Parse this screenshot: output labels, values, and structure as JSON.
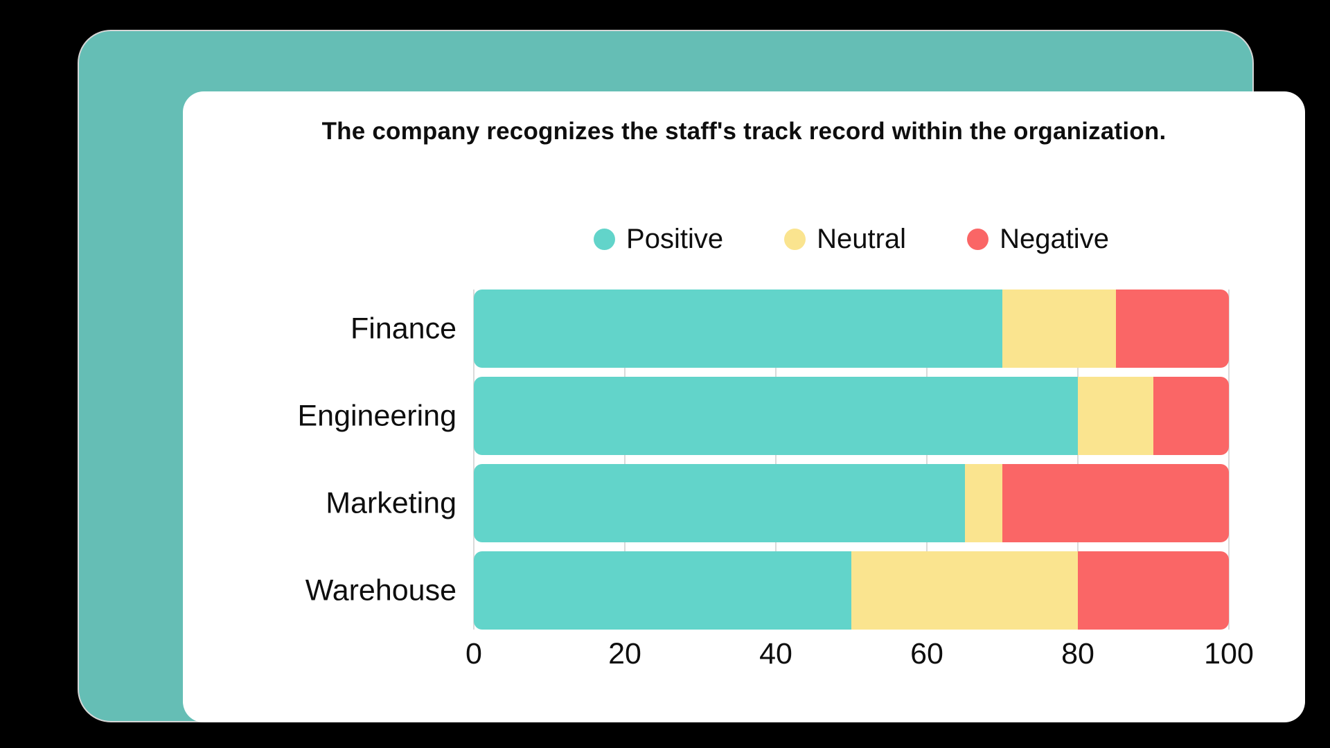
{
  "frame_color": "#65BEB5",
  "card_color": "#ffffff",
  "grid_color": "#dadada",
  "text_color": "#0e0e0e",
  "chart_data": {
    "type": "bar",
    "stacked": true,
    "orientation": "horizontal",
    "title": "The company recognizes the staff's track record within the organization.",
    "categories": [
      "Finance",
      "Engineering",
      "Marketing",
      "Warehouse"
    ],
    "series": [
      {
        "name": "Positive",
        "color": "#62D4CA",
        "values": [
          70,
          80,
          65,
          50
        ]
      },
      {
        "name": "Neutral",
        "color": "#FAE48F",
        "values": [
          15,
          10,
          5,
          30
        ]
      },
      {
        "name": "Negative",
        "color": "#FA6666",
        "values": [
          15,
          10,
          30,
          20
        ]
      }
    ],
    "x_ticks": [
      0,
      20,
      40,
      60,
      80,
      100
    ],
    "xlim": [
      0,
      100
    ],
    "xlabel": "",
    "ylabel": "",
    "legend_position": "top-center",
    "grid": "vertical"
  }
}
